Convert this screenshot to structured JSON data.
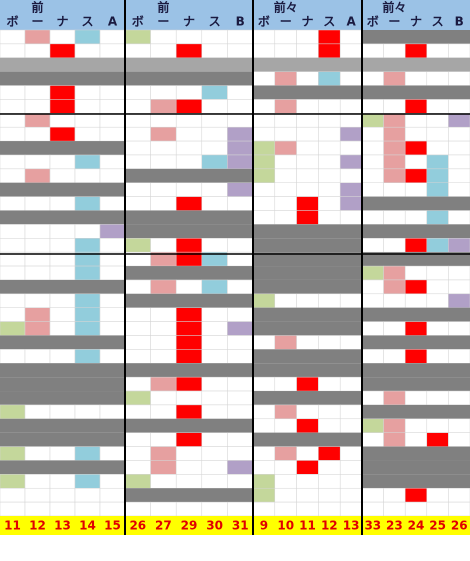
{
  "groups": [
    {
      "top": "前",
      "labels": [
        "ボ",
        "ー",
        "ナ",
        "ス",
        "A"
      ],
      "numbers": [
        11,
        12,
        13,
        14,
        15
      ]
    },
    {
      "top": "前",
      "labels": [
        "ボ",
        "ー",
        "ナ",
        "ス",
        "B"
      ],
      "numbers": [
        26,
        27,
        29,
        30,
        31
      ]
    },
    {
      "top": "前々",
      "labels": [
        "ボ",
        "ー",
        "ナ",
        "ス",
        "A"
      ],
      "numbers": [
        9,
        10,
        11,
        12,
        13
      ]
    },
    {
      "top": "前々",
      "labels": [
        "ボ",
        "ー",
        "ナ",
        "ス",
        "B"
      ],
      "numbers": [
        33,
        23,
        24,
        25,
        26
      ]
    }
  ]
}
